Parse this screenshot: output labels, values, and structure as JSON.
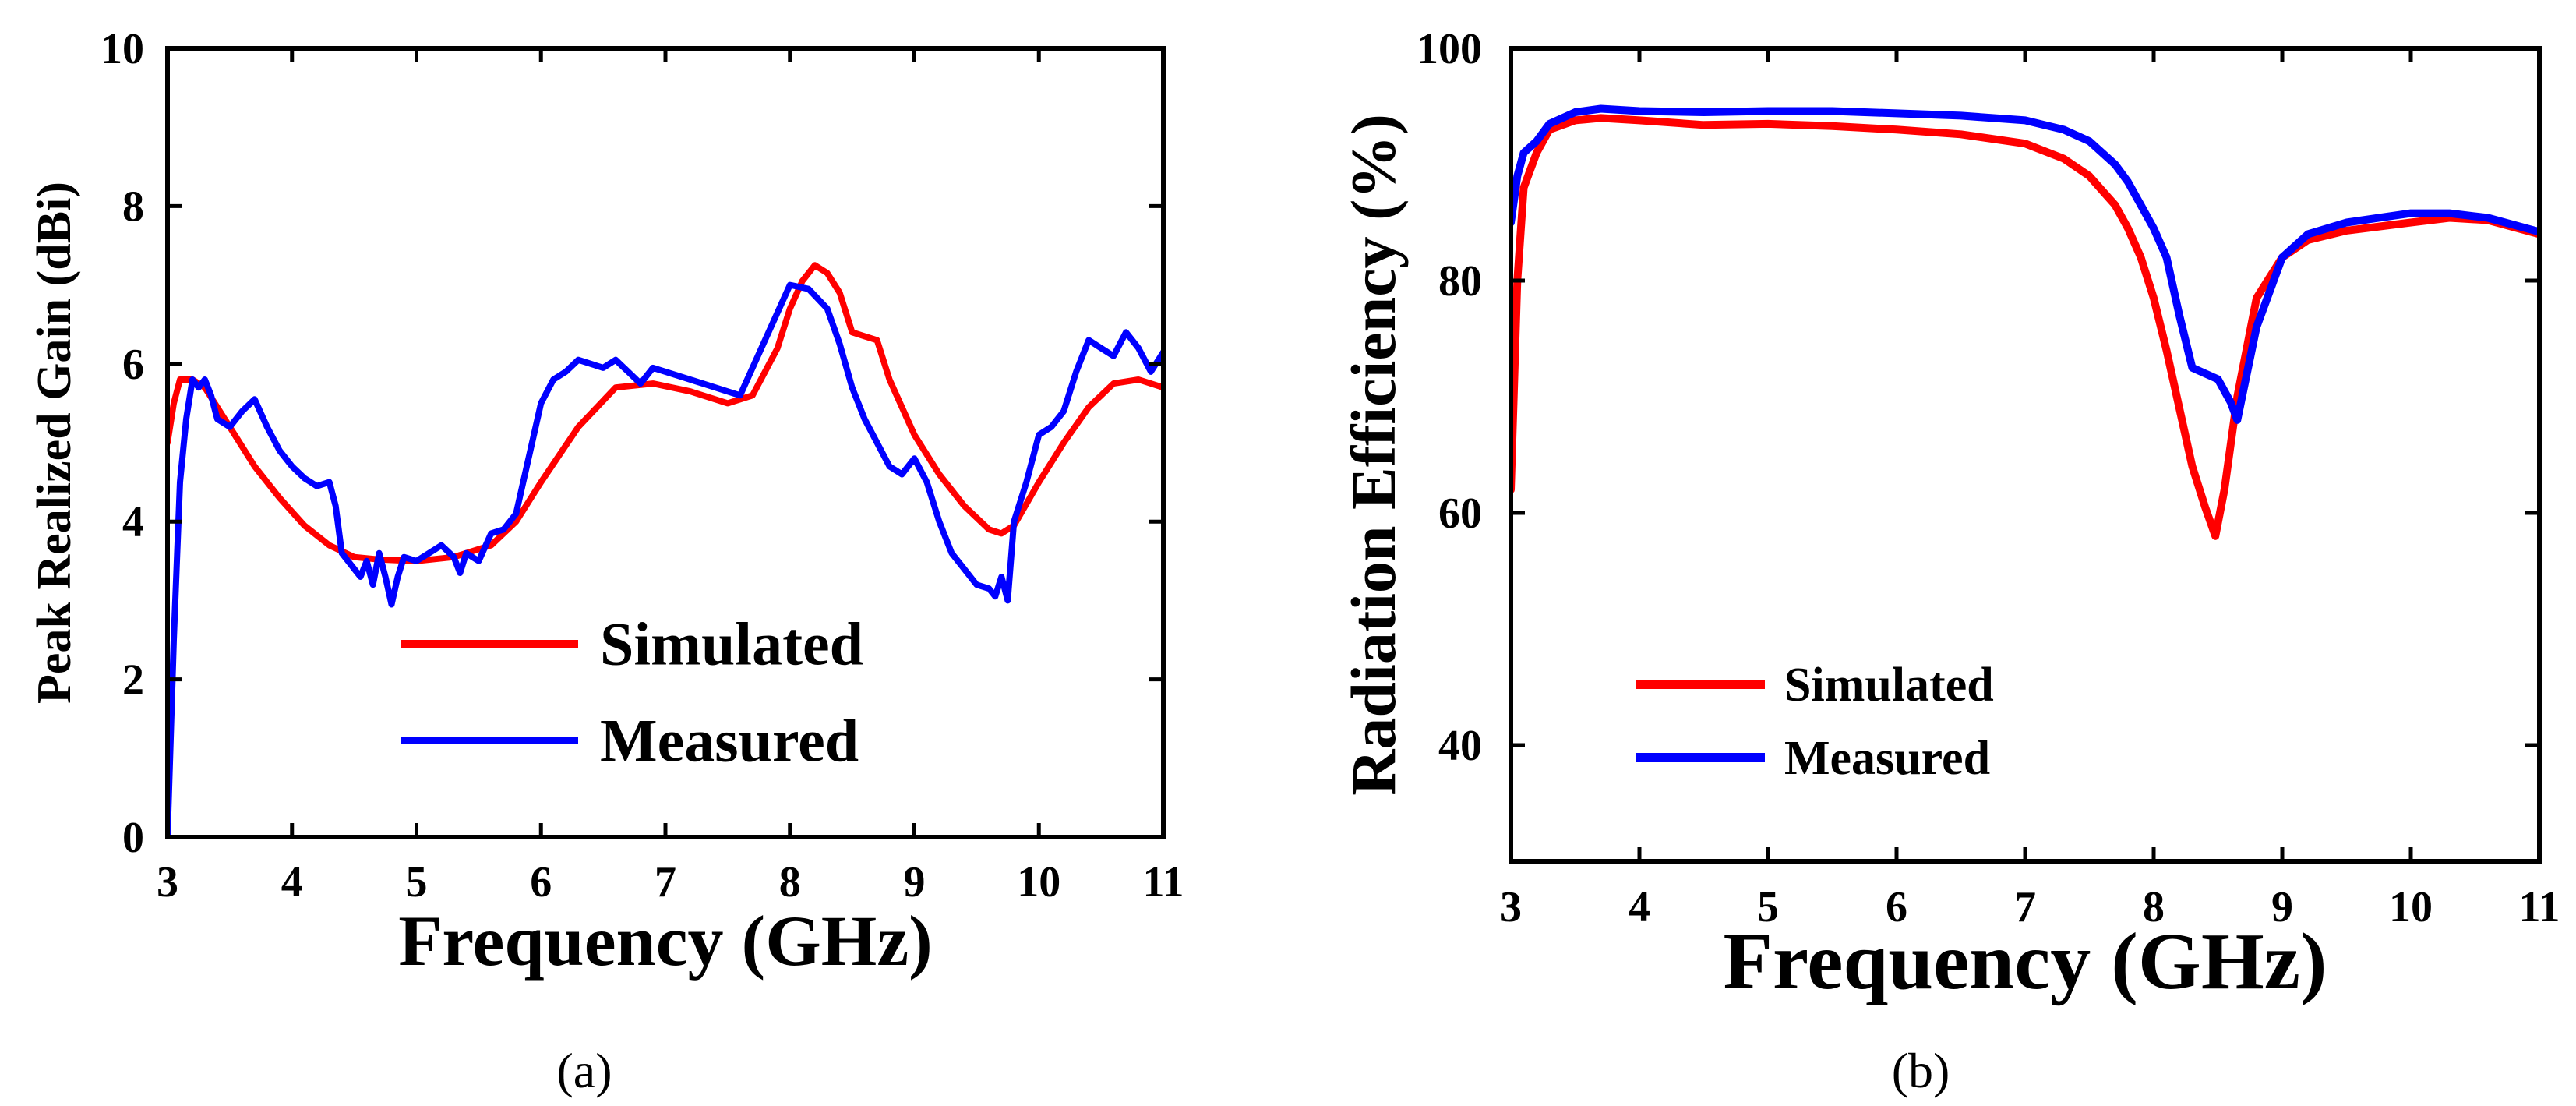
{
  "chart_data": [
    {
      "type": "line",
      "panel_label": "(a)",
      "title": "",
      "xlabel": "Frequency (GHz)",
      "ylabel": "Peak Realized Gain (dBi)",
      "xlim": [
        3,
        11
      ],
      "ylim": [
        0,
        10
      ],
      "xticks": [
        "3",
        "4",
        "5",
        "6",
        "7",
        "8",
        "9",
        "10",
        "11"
      ],
      "yticks": [
        "0",
        "2",
        "4",
        "6",
        "8",
        "10"
      ],
      "legend_position": "bottom-center",
      "series": [
        {
          "name": "Simulated",
          "color": "#ff0000",
          "x": [
            3.0,
            3.05,
            3.1,
            3.2,
            3.3,
            3.5,
            3.7,
            3.9,
            4.1,
            4.3,
            4.5,
            4.7,
            5.0,
            5.3,
            5.6,
            5.8,
            6.0,
            6.3,
            6.6,
            6.9,
            7.2,
            7.5,
            7.7,
            7.9,
            8.0,
            8.1,
            8.2,
            8.3,
            8.4,
            8.5,
            8.6,
            8.7,
            8.8,
            9.0,
            9.2,
            9.4,
            9.6,
            9.7,
            9.8,
            10.0,
            10.2,
            10.4,
            10.6,
            10.8,
            11.0
          ],
          "values": [
            5.0,
            5.5,
            5.8,
            5.8,
            5.7,
            5.2,
            4.7,
            4.3,
            3.95,
            3.7,
            3.55,
            3.52,
            3.5,
            3.55,
            3.7,
            4.0,
            4.5,
            5.2,
            5.7,
            5.75,
            5.65,
            5.5,
            5.6,
            6.2,
            6.7,
            7.05,
            7.25,
            7.15,
            6.9,
            6.4,
            6.35,
            6.3,
            5.8,
            5.1,
            4.6,
            4.2,
            3.9,
            3.85,
            3.95,
            4.5,
            5.0,
            5.45,
            5.75,
            5.8,
            5.7
          ]
        },
        {
          "name": "Measured",
          "color": "#0000ff",
          "x": [
            3.0,
            3.05,
            3.1,
            3.15,
            3.2,
            3.25,
            3.3,
            3.35,
            3.4,
            3.5,
            3.6,
            3.7,
            3.8,
            3.9,
            4.0,
            4.1,
            4.2,
            4.3,
            4.35,
            4.4,
            4.5,
            4.55,
            4.6,
            4.65,
            4.7,
            4.75,
            4.8,
            4.85,
            4.9,
            5.0,
            5.1,
            5.2,
            5.3,
            5.35,
            5.4,
            5.5,
            5.6,
            5.7,
            5.8,
            5.9,
            6.0,
            6.1,
            6.2,
            6.3,
            6.4,
            6.5,
            6.6,
            6.7,
            6.8,
            6.9,
            7.0,
            7.3,
            7.6,
            7.8,
            8.0,
            8.15,
            8.3,
            8.4,
            8.5,
            8.6,
            8.7,
            8.8,
            8.9,
            9.0,
            9.1,
            9.2,
            9.3,
            9.4,
            9.5,
            9.6,
            9.65,
            9.7,
            9.75,
            9.8,
            9.9,
            10.0,
            10.1,
            10.2,
            10.3,
            10.4,
            10.5,
            10.6,
            10.7,
            10.8,
            10.9,
            11.0
          ],
          "values": [
            0.0,
            2.5,
            4.5,
            5.3,
            5.8,
            5.7,
            5.8,
            5.6,
            5.3,
            5.2,
            5.4,
            5.55,
            5.2,
            4.9,
            4.7,
            4.55,
            4.45,
            4.5,
            4.2,
            3.6,
            3.4,
            3.3,
            3.5,
            3.2,
            3.6,
            3.3,
            2.95,
            3.3,
            3.55,
            3.5,
            3.6,
            3.7,
            3.55,
            3.35,
            3.6,
            3.5,
            3.85,
            3.9,
            4.1,
            4.8,
            5.5,
            5.8,
            5.9,
            6.05,
            6.0,
            5.95,
            6.05,
            5.9,
            5.75,
            5.95,
            5.9,
            5.75,
            5.6,
            6.3,
            7.0,
            6.95,
            6.7,
            6.25,
            5.7,
            5.3,
            5.0,
            4.7,
            4.6,
            4.8,
            4.5,
            4.0,
            3.6,
            3.4,
            3.2,
            3.15,
            3.05,
            3.3,
            3.0,
            4.0,
            4.5,
            5.1,
            5.2,
            5.4,
            5.9,
            6.3,
            6.2,
            6.1,
            6.4,
            6.2,
            5.9,
            6.15
          ]
        }
      ]
    },
    {
      "type": "line",
      "panel_label": "(b)",
      "title": "",
      "xlabel": "Frequency (GHz)",
      "ylabel": "Radiation Efficiency (%)",
      "xlim": [
        3,
        11
      ],
      "ylim": [
        30,
        100
      ],
      "xticks": [
        "3",
        "4",
        "5",
        "6",
        "7",
        "8",
        "9",
        "10",
        "11"
      ],
      "yticks": [
        "40",
        "60",
        "80",
        "100"
      ],
      "legend_position": "lower-left",
      "series": [
        {
          "name": "Simulated",
          "color": "#ff0000",
          "x": [
            3.0,
            3.05,
            3.1,
            3.2,
            3.3,
            3.5,
            3.7,
            4.0,
            4.5,
            5.0,
            5.5,
            6.0,
            6.5,
            7.0,
            7.3,
            7.5,
            7.7,
            7.8,
            7.9,
            8.0,
            8.1,
            8.2,
            8.3,
            8.4,
            8.48,
            8.55,
            8.65,
            8.8,
            9.0,
            9.2,
            9.5,
            10.0,
            10.3,
            10.6,
            11.0
          ],
          "values": [
            62,
            80,
            88,
            91,
            93,
            93.8,
            94,
            93.8,
            93.4,
            93.5,
            93.3,
            93,
            92.6,
            91.8,
            90.5,
            89,
            86.5,
            84.5,
            82,
            78.5,
            74,
            69,
            64,
            60.5,
            58,
            62,
            70,
            78.5,
            82,
            83.5,
            84.3,
            85,
            85.4,
            85.2,
            84
          ]
        },
        {
          "name": "Measured",
          "color": "#0000ff",
          "x": [
            3.0,
            3.05,
            3.1,
            3.2,
            3.3,
            3.5,
            3.7,
            4.0,
            4.5,
            5.0,
            5.5,
            6.0,
            6.5,
            7.0,
            7.3,
            7.5,
            7.7,
            7.8,
            7.9,
            8.0,
            8.1,
            8.2,
            8.3,
            8.4,
            8.5,
            8.6,
            8.65,
            8.8,
            9.0,
            9.2,
            9.5,
            10.0,
            10.3,
            10.6,
            11.0
          ],
          "values": [
            85,
            89,
            91,
            92,
            93.5,
            94.5,
            94.8,
            94.6,
            94.5,
            94.6,
            94.6,
            94.4,
            94.2,
            93.8,
            93,
            92,
            90,
            88.5,
            86.5,
            84.5,
            82,
            77,
            72.5,
            72,
            71.5,
            69.5,
            68,
            76,
            82,
            84,
            85,
            85.8,
            85.8,
            85.4,
            84.2
          ]
        }
      ]
    }
  ]
}
